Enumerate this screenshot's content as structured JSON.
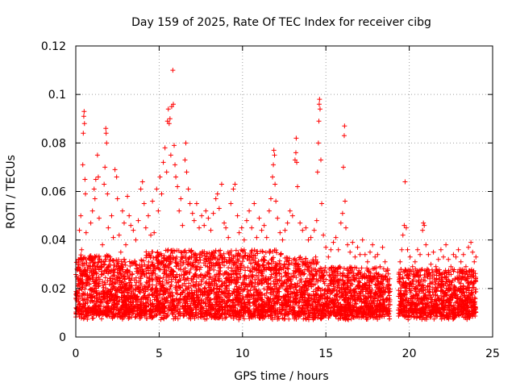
{
  "chart_data": {
    "type": "scatter",
    "title": "Day 159 of 2025, Rate Of TEC Index for receiver cibg",
    "xlabel": "GPS time / hours",
    "ylabel": "ROTI / TECUs",
    "xlim": [
      0,
      25
    ],
    "ylim": [
      0,
      0.12
    ],
    "xticks": [
      0,
      5,
      10,
      15,
      20,
      25
    ],
    "xtick_labels": [
      "0",
      "5",
      "10",
      "15",
      "20",
      "25"
    ],
    "yticks": [
      0,
      0.02,
      0.04,
      0.06,
      0.08,
      0.1,
      0.12
    ],
    "ytick_labels": [
      "0",
      "0.02",
      "0.04",
      "0.06",
      "0.08",
      "0.1",
      "0.12"
    ],
    "grid": true,
    "marker": "+",
    "color": "#ff0000",
    "data_gap_hours": [
      18.85,
      19.35
    ],
    "points": [
      [
        0.08,
        0.018
      ],
      [
        0.15,
        0.032
      ],
      [
        0.22,
        0.044
      ],
      [
        0.3,
        0.05
      ],
      [
        0.35,
        0.036
      ],
      [
        0.42,
        0.071
      ],
      [
        0.45,
        0.084
      ],
      [
        0.48,
        0.091
      ],
      [
        0.5,
        0.093
      ],
      [
        0.52,
        0.088
      ],
      [
        0.55,
        0.065
      ],
      [
        0.58,
        0.059
      ],
      [
        0.62,
        0.043
      ],
      [
        0.7,
        0.028
      ],
      [
        0.8,
        0.022
      ],
      [
        0.9,
        0.047
      ],
      [
        1.0,
        0.052
      ],
      [
        1.1,
        0.061
      ],
      [
        1.15,
        0.057
      ],
      [
        1.2,
        0.065
      ],
      [
        1.3,
        0.075
      ],
      [
        1.35,
        0.066
      ],
      [
        1.4,
        0.049
      ],
      [
        1.5,
        0.031
      ],
      [
        1.6,
        0.038
      ],
      [
        1.7,
        0.063
      ],
      [
        1.75,
        0.07
      ],
      [
        1.8,
        0.086
      ],
      [
        1.82,
        0.084
      ],
      [
        1.85,
        0.08
      ],
      [
        1.9,
        0.059
      ],
      [
        1.95,
        0.045
      ],
      [
        2.05,
        0.033
      ],
      [
        2.15,
        0.05
      ],
      [
        2.25,
        0.041
      ],
      [
        2.35,
        0.069
      ],
      [
        2.45,
        0.066
      ],
      [
        2.5,
        0.057
      ],
      [
        2.6,
        0.042
      ],
      [
        2.7,
        0.035
      ],
      [
        2.8,
        0.052
      ],
      [
        2.9,
        0.047
      ],
      [
        3.0,
        0.038
      ],
      [
        3.1,
        0.058
      ],
      [
        3.2,
        0.05
      ],
      [
        3.3,
        0.046
      ],
      [
        3.45,
        0.044
      ],
      [
        3.6,
        0.04
      ],
      [
        3.75,
        0.048
      ],
      [
        3.9,
        0.061
      ],
      [
        4.0,
        0.064
      ],
      [
        4.1,
        0.055
      ],
      [
        4.2,
        0.045
      ],
      [
        4.35,
        0.05
      ],
      [
        4.5,
        0.042
      ],
      [
        4.6,
        0.056
      ],
      [
        4.7,
        0.043
      ],
      [
        4.85,
        0.061
      ],
      [
        4.95,
        0.052
      ],
      [
        5.05,
        0.066
      ],
      [
        5.15,
        0.059
      ],
      [
        5.25,
        0.072
      ],
      [
        5.35,
        0.078
      ],
      [
        5.45,
        0.068
      ],
      [
        5.5,
        0.089
      ],
      [
        5.55,
        0.094
      ],
      [
        5.6,
        0.088
      ],
      [
        5.65,
        0.09
      ],
      [
        5.7,
        0.075
      ],
      [
        5.75,
        0.095
      ],
      [
        5.82,
        0.11
      ],
      [
        5.85,
        0.096
      ],
      [
        5.9,
        0.079
      ],
      [
        5.95,
        0.071
      ],
      [
        6.0,
        0.066
      ],
      [
        6.1,
        0.062
      ],
      [
        6.2,
        0.052
      ],
      [
        6.3,
        0.057
      ],
      [
        6.4,
        0.046
      ],
      [
        6.55,
        0.073
      ],
      [
        6.6,
        0.08
      ],
      [
        6.65,
        0.068
      ],
      [
        6.75,
        0.061
      ],
      [
        6.85,
        0.055
      ],
      [
        7.0,
        0.051
      ],
      [
        7.1,
        0.048
      ],
      [
        7.25,
        0.055
      ],
      [
        7.4,
        0.045
      ],
      [
        7.55,
        0.05
      ],
      [
        7.7,
        0.046
      ],
      [
        7.8,
        0.052
      ],
      [
        7.95,
        0.049
      ],
      [
        8.1,
        0.044
      ],
      [
        8.25,
        0.051
      ],
      [
        8.4,
        0.057
      ],
      [
        8.5,
        0.059
      ],
      [
        8.6,
        0.053
      ],
      [
        8.75,
        0.063
      ],
      [
        8.9,
        0.047
      ],
      [
        9.0,
        0.045
      ],
      [
        9.15,
        0.041
      ],
      [
        9.3,
        0.055
      ],
      [
        9.45,
        0.061
      ],
      [
        9.55,
        0.063
      ],
      [
        9.7,
        0.05
      ],
      [
        9.8,
        0.043
      ],
      [
        9.95,
        0.045
      ],
      [
        10.1,
        0.04
      ],
      [
        10.25,
        0.048
      ],
      [
        10.4,
        0.052
      ],
      [
        10.55,
        0.045
      ],
      [
        10.7,
        0.055
      ],
      [
        10.85,
        0.041
      ],
      [
        11.0,
        0.049
      ],
      [
        11.15,
        0.044
      ],
      [
        11.3,
        0.046
      ],
      [
        11.45,
        0.041
      ],
      [
        11.6,
        0.052
      ],
      [
        11.7,
        0.057
      ],
      [
        11.8,
        0.066
      ],
      [
        11.85,
        0.071
      ],
      [
        11.88,
        0.077
      ],
      [
        11.92,
        0.075
      ],
      [
        11.95,
        0.063
      ],
      [
        12.0,
        0.056
      ],
      [
        12.1,
        0.049
      ],
      [
        12.25,
        0.043
      ],
      [
        12.4,
        0.04
      ],
      [
        12.55,
        0.044
      ],
      [
        12.7,
        0.047
      ],
      [
        12.85,
        0.052
      ],
      [
        13.0,
        0.05
      ],
      [
        13.15,
        0.073
      ],
      [
        13.2,
        0.076
      ],
      [
        13.22,
        0.082
      ],
      [
        13.25,
        0.072
      ],
      [
        13.3,
        0.062
      ],
      [
        13.45,
        0.047
      ],
      [
        13.6,
        0.044
      ],
      [
        13.8,
        0.045
      ],
      [
        13.95,
        0.04
      ],
      [
        14.1,
        0.041
      ],
      [
        14.3,
        0.044
      ],
      [
        14.45,
        0.048
      ],
      [
        14.5,
        0.068
      ],
      [
        14.55,
        0.08
      ],
      [
        14.58,
        0.089
      ],
      [
        14.6,
        0.096
      ],
      [
        14.62,
        0.098
      ],
      [
        14.65,
        0.094
      ],
      [
        14.7,
        0.073
      ],
      [
        14.75,
        0.055
      ],
      [
        14.85,
        0.042
      ],
      [
        15.0,
        0.037
      ],
      [
        15.15,
        0.033
      ],
      [
        15.3,
        0.036
      ],
      [
        15.45,
        0.039
      ],
      [
        15.6,
        0.041
      ],
      [
        15.75,
        0.036
      ],
      [
        15.9,
        0.047
      ],
      [
        16.0,
        0.051
      ],
      [
        16.05,
        0.07
      ],
      [
        16.1,
        0.083
      ],
      [
        16.12,
        0.087
      ],
      [
        16.15,
        0.056
      ],
      [
        16.2,
        0.045
      ],
      [
        16.3,
        0.038
      ],
      [
        16.45,
        0.035
      ],
      [
        16.6,
        0.039
      ],
      [
        16.75,
        0.033
      ],
      [
        16.9,
        0.037
      ],
      [
        17.05,
        0.034
      ],
      [
        17.2,
        0.04
      ],
      [
        17.35,
        0.034
      ],
      [
        17.5,
        0.031
      ],
      [
        17.65,
        0.035
      ],
      [
        17.8,
        0.038
      ],
      [
        17.95,
        0.033
      ],
      [
        18.1,
        0.034
      ],
      [
        18.25,
        0.029
      ],
      [
        18.4,
        0.037
      ],
      [
        18.55,
        0.031
      ],
      [
        18.7,
        0.028
      ],
      [
        19.45,
        0.031
      ],
      [
        19.55,
        0.036
      ],
      [
        19.62,
        0.042
      ],
      [
        19.7,
        0.046
      ],
      [
        19.75,
        0.064
      ],
      [
        19.82,
        0.045
      ],
      [
        19.9,
        0.036
      ],
      [
        20.05,
        0.033
      ],
      [
        20.2,
        0.029
      ],
      [
        20.35,
        0.031
      ],
      [
        20.5,
        0.036
      ],
      [
        20.65,
        0.034
      ],
      [
        20.8,
        0.044
      ],
      [
        20.85,
        0.047
      ],
      [
        20.9,
        0.046
      ],
      [
        21.0,
        0.038
      ],
      [
        21.15,
        0.034
      ],
      [
        21.3,
        0.03
      ],
      [
        21.45,
        0.035
      ],
      [
        21.6,
        0.029
      ],
      [
        21.75,
        0.032
      ],
      [
        21.9,
        0.036
      ],
      [
        22.05,
        0.033
      ],
      [
        22.2,
        0.038
      ],
      [
        22.35,
        0.032
      ],
      [
        22.5,
        0.029
      ],
      [
        22.65,
        0.034
      ],
      [
        22.8,
        0.033
      ],
      [
        22.95,
        0.036
      ],
      [
        23.1,
        0.031
      ],
      [
        23.25,
        0.034
      ],
      [
        23.4,
        0.029
      ],
      [
        23.55,
        0.037
      ],
      [
        23.7,
        0.039
      ],
      [
        23.8,
        0.035
      ],
      [
        23.9,
        0.031
      ],
      [
        24.0,
        0.033
      ]
    ]
  }
}
